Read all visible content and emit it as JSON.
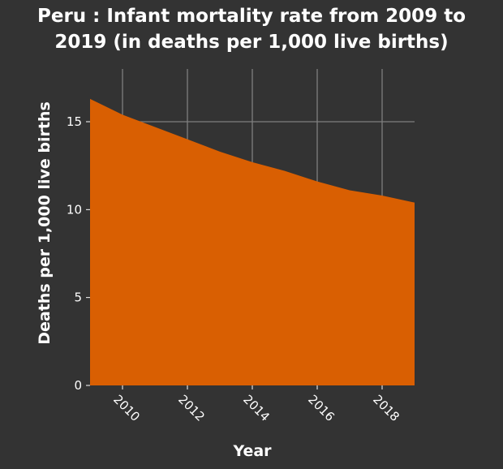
{
  "chart_data": {
    "type": "area",
    "title_line1": "Peru : Infant mortality rate from 2009 to",
    "title_line2": "2019 (in deaths per 1,000 live births)",
    "xlabel": "Year",
    "ylabel": "Deaths per 1,000 live births",
    "x": [
      2009,
      2010,
      2011,
      2012,
      2013,
      2014,
      2015,
      2016,
      2017,
      2018,
      2019
    ],
    "values": [
      16.3,
      15.4,
      14.7,
      14.0,
      13.3,
      12.7,
      12.2,
      11.6,
      11.1,
      10.8,
      10.4
    ],
    "xlim": [
      2009,
      2019
    ],
    "ylim": [
      0,
      18.0
    ],
    "x_ticks": [
      2010,
      2012,
      2014,
      2016,
      2018
    ],
    "x_tick_labels": [
      "2010",
      "2012",
      "2014",
      "2016",
      "2018"
    ],
    "y_ticks": [
      0,
      5,
      10,
      15
    ],
    "y_tick_labels": [
      "0",
      "5",
      "10",
      "15"
    ],
    "grid": true,
    "colors": {
      "background": "#333333",
      "plot_background": "#333333",
      "area_fill": "#d95f02",
      "grid": "#7f7f7f",
      "text": "#ffffff"
    }
  }
}
